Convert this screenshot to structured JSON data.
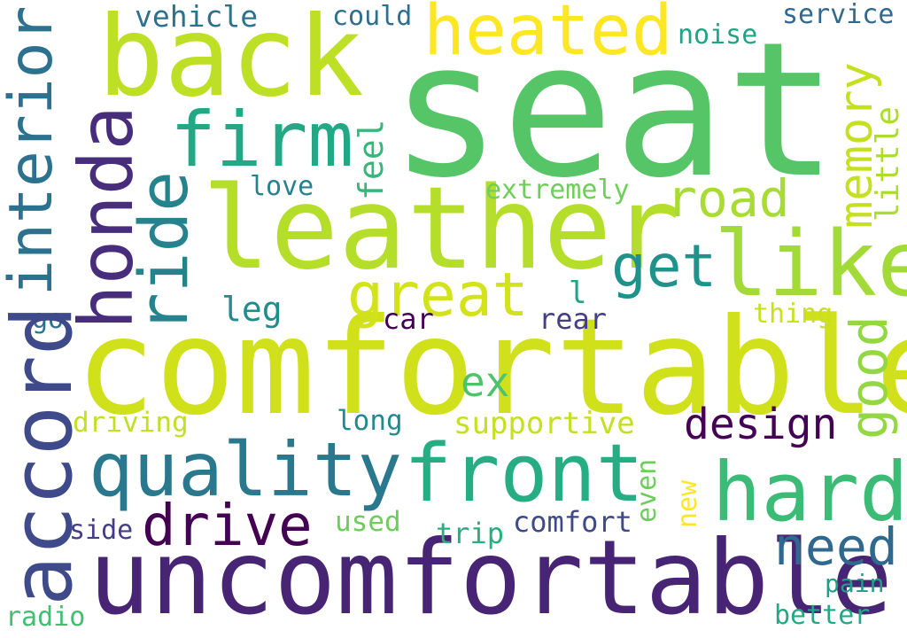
{
  "words": [
    {
      "text": "seat",
      "color": "#55c568"
    },
    {
      "text": "back",
      "color": "#bddf26"
    },
    {
      "text": "heated",
      "color": "#fde725"
    },
    {
      "text": "firm",
      "color": "#22a884"
    },
    {
      "text": "leather",
      "color": "#b5de2b"
    },
    {
      "text": "like",
      "color": "#a2da37"
    },
    {
      "text": "comfortable",
      "color": "#d0e11c"
    },
    {
      "text": "uncomfortable",
      "color": "#482475"
    },
    {
      "text": "quality",
      "color": "#2a788e"
    },
    {
      "text": "front",
      "color": "#26ad81"
    },
    {
      "text": "hard",
      "color": "#3bbb75"
    },
    {
      "text": "drive",
      "color": "#440154"
    },
    {
      "text": "honda",
      "color": "#472d7b"
    },
    {
      "text": "accord",
      "color": "#3e4a89"
    },
    {
      "text": "interior",
      "color": "#2c728e"
    },
    {
      "text": "ride",
      "color": "#25838e"
    },
    {
      "text": "road",
      "color": "#a8db34"
    },
    {
      "text": "get",
      "color": "#21918c"
    },
    {
      "text": "great",
      "color": "#d2e21b"
    },
    {
      "text": "memory",
      "color": "#c5e021"
    },
    {
      "text": "little",
      "color": "#addc30"
    },
    {
      "text": "good",
      "color": "#93d741"
    },
    {
      "text": "design",
      "color": "#440154"
    },
    {
      "text": "need",
      "color": "#31688e"
    },
    {
      "text": "vehicle",
      "color": "#2c718e"
    },
    {
      "text": "could",
      "color": "#2e6e8e"
    },
    {
      "text": "noise",
      "color": "#20a486"
    },
    {
      "text": "service",
      "color": "#31688e"
    },
    {
      "text": "love",
      "color": "#27808e"
    },
    {
      "text": "feel",
      "color": "#35b779"
    },
    {
      "text": "extremely",
      "color": "#6ece58"
    },
    {
      "text": "l",
      "color": "#20a386"
    },
    {
      "text": "leg",
      "color": "#228c8d"
    },
    {
      "text": "car",
      "color": "#440154"
    },
    {
      "text": "rear",
      "color": "#433e85"
    },
    {
      "text": "thing",
      "color": "#c8e020"
    },
    {
      "text": "go",
      "color": "#2c728e"
    },
    {
      "text": "ex",
      "color": "#4ec36b"
    },
    {
      "text": "driving",
      "color": "#c2df23"
    },
    {
      "text": "long",
      "color": "#23898e"
    },
    {
      "text": "supportive",
      "color": "#c5e021"
    },
    {
      "text": "even",
      "color": "#6ccd5a"
    },
    {
      "text": "new",
      "color": "#fde725"
    },
    {
      "text": "side",
      "color": "#433e85"
    },
    {
      "text": "used",
      "color": "#6ccd5a"
    },
    {
      "text": "trip",
      "color": "#29af7f"
    },
    {
      "text": "comfort",
      "color": "#3e4989"
    },
    {
      "text": "pain",
      "color": "#1f9e89"
    },
    {
      "text": "radio",
      "color": "#42be71"
    },
    {
      "text": "better",
      "color": "#22a884"
    }
  ]
}
